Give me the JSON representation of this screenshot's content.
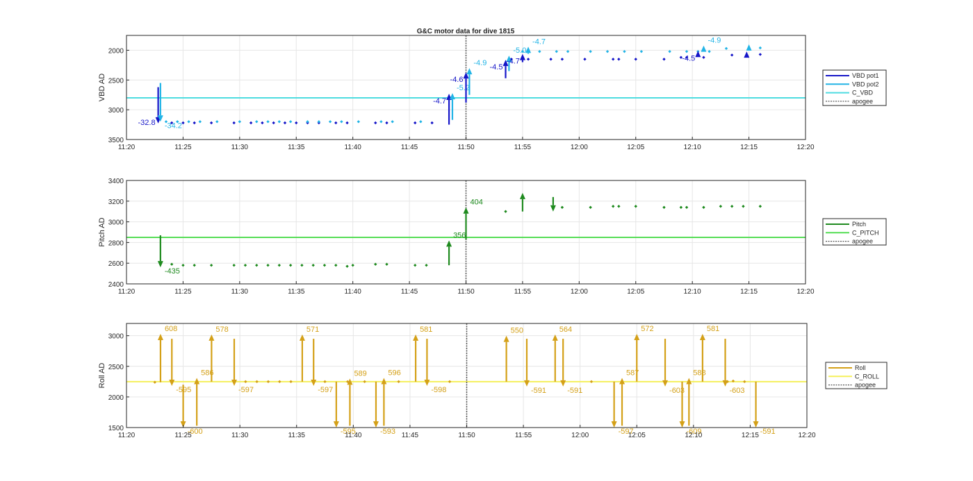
{
  "chart_data": [
    {
      "type": "scatter",
      "title": "G&C motor data for dive 1815",
      "xlabel": "",
      "ylabel": "VBD AD",
      "xlim": [
        "11:20",
        "12:20"
      ],
      "ylim": [
        3500,
        1750
      ],
      "y_reversed": true,
      "xticks": [
        "11:20",
        "11:25",
        "11:30",
        "11:35",
        "11:40",
        "11:45",
        "11:50",
        "11:55",
        "12:00",
        "12:05",
        "12:10",
        "12:15",
        "12:20"
      ],
      "yticks": [
        "2000",
        "2500",
        "3000",
        "3500"
      ],
      "grid": true,
      "legend_position": "right",
      "legend": [
        "VBD pot1",
        "VBD pot2",
        "C_VBD",
        "apogee"
      ],
      "colors": {
        "pot1": "#1515c8",
        "pot2": "#22b4e6",
        "c_line": "#4ddce0",
        "apogee": "#555555"
      },
      "apogee_x": "11:50",
      "reference_line": {
        "name": "C_VBD",
        "y": 2800
      },
      "series": [
        {
          "name": "VBD pot1",
          "x": [
            "11:24",
            "11:25",
            "11:26",
            "11:27.5",
            "11:29.5",
            "11:31",
            "11:32",
            "11:33",
            "11:34",
            "11:35",
            "11:36",
            "11:37",
            "11:38.5",
            "11:39.5",
            "11:42",
            "11:43",
            "11:45.5",
            "11:47",
            "11:54",
            "11:55.5",
            "11:57.5",
            "11:58.5",
            "12:00.5",
            "12:03",
            "12:03.5",
            "12:05",
            "12:07.5",
            "12:09",
            "12:09.5",
            "12:11",
            "12:13.5",
            "12:16"
          ],
          "y": [
            3220,
            3220,
            3220,
            3220,
            3220,
            3220,
            3220,
            3220,
            3220,
            3220,
            3220,
            3220,
            3220,
            3220,
            3220,
            3220,
            3220,
            3220,
            2150,
            2150,
            2150,
            2150,
            2150,
            2150,
            2150,
            2150,
            2150,
            2120,
            2120,
            2120,
            2080,
            2070
          ]
        },
        {
          "name": "VBD pot2",
          "x": [
            "11:23.5",
            "11:24.5",
            "11:25.5",
            "11:26.5",
            "11:28",
            "11:30",
            "11:31.5",
            "11:32.5",
            "11:33.5",
            "11:34.5",
            "11:36",
            "11:37",
            "11:38",
            "11:39",
            "11:40.5",
            "11:42.5",
            "11:43.5",
            "11:46",
            "11:55",
            "11:56.5",
            "11:58",
            "11:59",
            "12:01",
            "12:02.5",
            "12:04",
            "12:05.5",
            "12:08",
            "12:09.5",
            "12:10.5",
            "12:11.5",
            "12:13",
            "12:16"
          ],
          "y": [
            3200,
            3200,
            3200,
            3200,
            3200,
            3200,
            3200,
            3200,
            3200,
            3200,
            3200,
            3200,
            3200,
            3200,
            3200,
            3200,
            3200,
            3200,
            2020,
            2020,
            2020,
            2020,
            2020,
            2020,
            2020,
            2020,
            2020,
            2020,
            2020,
            2020,
            1970,
            1960
          ]
        }
      ],
      "arrows": [
        {
          "series": "VBD pot1",
          "x": "11:22.8",
          "y_start": 2620,
          "y_end": 3230,
          "label": "-32.8"
        },
        {
          "series": "VBD pot2",
          "x": "11:23",
          "y_start": 2550,
          "y_end": 3200,
          "label": "-34.2"
        },
        {
          "series": "VBD pot1",
          "x": "11:48.5",
          "y_start": 3250,
          "y_end": 2730,
          "label": "-4.7"
        },
        {
          "series": "VBD pot2",
          "x": "11:48.8",
          "y_start": 3170,
          "y_end": 2720,
          "label": "-5.2"
        },
        {
          "series": "VBD pot1",
          "x": "11:50",
          "y_start": 2880,
          "y_end": 2370,
          "label": "-4.6"
        },
        {
          "series": "VBD pot2",
          "x": "11:50.3",
          "y_start": 2750,
          "y_end": 2300,
          "label": "-4.9"
        },
        {
          "series": "VBD pot1",
          "x": "11:53.5",
          "y_start": 2470,
          "y_end": 2160,
          "label": "-4.5"
        },
        {
          "series": "VBD pot2",
          "x": "11:53.8",
          "y_start": 2350,
          "y_end": 2090,
          "label": "-5.0"
        },
        {
          "series": "VBD pot1",
          "x": "11:55",
          "y_start": 2200,
          "y_end": 2060,
          "label": "-4.7"
        },
        {
          "series": "VBD pot2",
          "x": "11:55.5",
          "y_start": 2060,
          "y_end": 1940,
          "label": "-4.7"
        },
        {
          "series": "VBD pot1",
          "x": "12:10.5",
          "y_start": 2080,
          "y_end": 2010,
          "label": "-4.5"
        },
        {
          "series": "VBD pot2",
          "x": "12:11",
          "y_start": 2000,
          "y_end": 1920,
          "label": "-4.9"
        },
        {
          "series": "VBD pot1",
          "x": "12:14.8",
          "y_start": 2070,
          "y_end": 2020,
          "label": ""
        },
        {
          "series": "VBD pot2",
          "x": "12:15",
          "y_start": 1960,
          "y_end": 1900,
          "label": ""
        }
      ]
    },
    {
      "type": "scatter",
      "title": "",
      "xlabel": "",
      "ylabel": "Pitch AD",
      "xlim": [
        "11:20",
        "12:20"
      ],
      "ylim": [
        2400,
        3400
      ],
      "xticks": [
        "11:20",
        "11:25",
        "11:30",
        "11:35",
        "11:40",
        "11:45",
        "11:50",
        "11:55",
        "12:00",
        "12:05",
        "12:10",
        "12:15",
        "12:20"
      ],
      "yticks": [
        "2400",
        "2600",
        "2800",
        "3000",
        "3200",
        "3400"
      ],
      "grid": true,
      "legend_position": "right",
      "legend": [
        "Pitch",
        "C_PITCH",
        "apogee"
      ],
      "colors": {
        "series": "#1e8a1e",
        "c_line": "#55dd55",
        "apogee": "#555555"
      },
      "apogee_x": "11:50",
      "reference_line": {
        "name": "C_PITCH",
        "y": 2850
      },
      "series": [
        {
          "name": "Pitch",
          "x": [
            "11:24",
            "11:25",
            "11:26",
            "11:27.5",
            "11:29.5",
            "11:30.5",
            "11:31.5",
            "11:32.5",
            "11:33.5",
            "11:34.5",
            "11:35.5",
            "11:36.5",
            "11:37.5",
            "11:38.5",
            "11:39.5",
            "11:40",
            "11:42",
            "11:43",
            "11:45.5",
            "11:46.5",
            "11:53.5",
            "11:58.5",
            "12:01",
            "12:03",
            "12:03.5",
            "12:05",
            "12:07.5",
            "12:09",
            "12:09.5",
            "12:11",
            "12:12.5",
            "12:13.5",
            "12:14.5",
            "12:16"
          ],
          "y": [
            2590,
            2580,
            2580,
            2580,
            2580,
            2580,
            2580,
            2580,
            2580,
            2580,
            2580,
            2580,
            2580,
            2580,
            2570,
            2580,
            2590,
            2590,
            2580,
            2580,
            3100,
            3140,
            3140,
            3150,
            3150,
            3150,
            3140,
            3140,
            3140,
            3140,
            3150,
            3150,
            3150,
            3150
          ]
        }
      ],
      "arrows": [
        {
          "series": "Pitch",
          "x": "11:23",
          "y_start": 2870,
          "y_end": 2560,
          "label": "-435"
        },
        {
          "series": "Pitch",
          "x": "11:48.5",
          "y_start": 2580,
          "y_end": 2820,
          "label": "356"
        },
        {
          "series": "Pitch",
          "x": "11:50",
          "y_start": 2830,
          "y_end": 3140,
          "label": "404"
        },
        {
          "series": "Pitch",
          "x": "11:55",
          "y_start": 3100,
          "y_end": 3280,
          "label": ""
        },
        {
          "series": "Pitch",
          "x": "11:57.7",
          "y_start": 3240,
          "y_end": 3100,
          "label": ""
        }
      ]
    },
    {
      "type": "scatter",
      "title": "",
      "xlabel": "",
      "ylabel": "Roll AD",
      "xlim": [
        "11:20",
        "12:20"
      ],
      "ylim": [
        1500,
        3200
      ],
      "xticks": [
        "11:20",
        "11:25",
        "11:30",
        "11:35",
        "11:40",
        "11:45",
        "11:50",
        "11:55",
        "12:00",
        "12:05",
        "12:10",
        "12:15",
        "12:20"
      ],
      "yticks": [
        "1500",
        "2000",
        "2500",
        "3000"
      ],
      "grid": true,
      "legend_position": "right",
      "legend": [
        "Roll",
        "C_ROLL",
        "apogee"
      ],
      "colors": {
        "series": "#d4a017",
        "c_line": "#f5f05a",
        "apogee": "#555555"
      },
      "apogee_x": "11:50",
      "reference_line": {
        "name": "C_ROLL",
        "y": 2250
      },
      "series": [
        {
          "name": "Roll",
          "x": [
            "11:22.5",
            "11:29.5",
            "11:30.5",
            "11:31.5",
            "11:32.5",
            "11:33.5",
            "11:34.5",
            "11:37.5",
            "11:39.5",
            "11:41",
            "11:44",
            "11:48.5",
            "12:01",
            "12:13",
            "12:13.5",
            "12:14.5"
          ],
          "y": [
            2240,
            2250,
            2250,
            2250,
            2250,
            2250,
            2250,
            2250,
            2250,
            2250,
            2250,
            2250,
            2250,
            2250,
            2260,
            2250
          ]
        }
      ],
      "arrows": [
        {
          "series": "Roll",
          "x": "11:23",
          "y_start": 2240,
          "y_end": 3030,
          "label": "608"
        },
        {
          "series": "Roll",
          "x": "11:24",
          "y_start": 2950,
          "y_end": 2180,
          "label": "-595"
        },
        {
          "series": "Roll",
          "x": "11:25",
          "y_start": 2200,
          "y_end": 1500,
          "label": "-600"
        },
        {
          "series": "Roll",
          "x": "11:26.2",
          "y_start": 1530,
          "y_end": 2310,
          "label": "586"
        },
        {
          "series": "Roll",
          "x": "11:27.5",
          "y_start": 2250,
          "y_end": 3020,
          "label": "578"
        },
        {
          "series": "Roll",
          "x": "11:29.5",
          "y_start": 2950,
          "y_end": 2180,
          "label": "-597"
        },
        {
          "series": "Roll",
          "x": "11:35.5",
          "y_start": 2250,
          "y_end": 3020,
          "label": "571"
        },
        {
          "series": "Roll",
          "x": "11:36.5",
          "y_start": 2950,
          "y_end": 2180,
          "label": "-597"
        },
        {
          "series": "Roll",
          "x": "11:38.5",
          "y_start": 2250,
          "y_end": 1500,
          "label": "-595"
        },
        {
          "series": "Roll",
          "x": "11:39.7",
          "y_start": 1530,
          "y_end": 2300,
          "label": "589"
        },
        {
          "series": "Roll",
          "x": "11:42",
          "y_start": 2250,
          "y_end": 1500,
          "label": "-593"
        },
        {
          "series": "Roll",
          "x": "11:42.7",
          "y_start": 1530,
          "y_end": 2310,
          "label": "596"
        },
        {
          "series": "Roll",
          "x": "11:45.5",
          "y_start": 2250,
          "y_end": 3020,
          "label": "581"
        },
        {
          "series": "Roll",
          "x": "11:46.5",
          "y_start": 2950,
          "y_end": 2180,
          "label": "-598"
        },
        {
          "series": "Roll",
          "x": "11:53.5",
          "y_start": 2250,
          "y_end": 3000,
          "label": "550"
        },
        {
          "series": "Roll",
          "x": "11:55.3",
          "y_start": 2950,
          "y_end": 2170,
          "label": "-591"
        },
        {
          "series": "Roll",
          "x": "11:57.8",
          "y_start": 2250,
          "y_end": 3020,
          "label": "564"
        },
        {
          "series": "Roll",
          "x": "11:58.5",
          "y_start": 2950,
          "y_end": 2170,
          "label": "-591"
        },
        {
          "series": "Roll",
          "x": "12:03",
          "y_start": 2250,
          "y_end": 1500,
          "label": "-597"
        },
        {
          "series": "Roll",
          "x": "12:03.7",
          "y_start": 1530,
          "y_end": 2310,
          "label": "587"
        },
        {
          "series": "Roll",
          "x": "12:05",
          "y_start": 2250,
          "y_end": 3030,
          "label": "572"
        },
        {
          "series": "Roll",
          "x": "12:07.5",
          "y_start": 2950,
          "y_end": 2170,
          "label": "-603"
        },
        {
          "series": "Roll",
          "x": "12:09",
          "y_start": 2250,
          "y_end": 1500,
          "label": "-609"
        },
        {
          "series": "Roll",
          "x": "12:09.6",
          "y_start": 1530,
          "y_end": 2310,
          "label": "588"
        },
        {
          "series": "Roll",
          "x": "12:10.8",
          "y_start": 2250,
          "y_end": 3030,
          "label": "581"
        },
        {
          "series": "Roll",
          "x": "12:12.8",
          "y_start": 2950,
          "y_end": 2170,
          "label": "-603"
        },
        {
          "series": "Roll",
          "x": "12:15.5",
          "y_start": 2250,
          "y_end": 1500,
          "label": "-591"
        }
      ]
    }
  ]
}
